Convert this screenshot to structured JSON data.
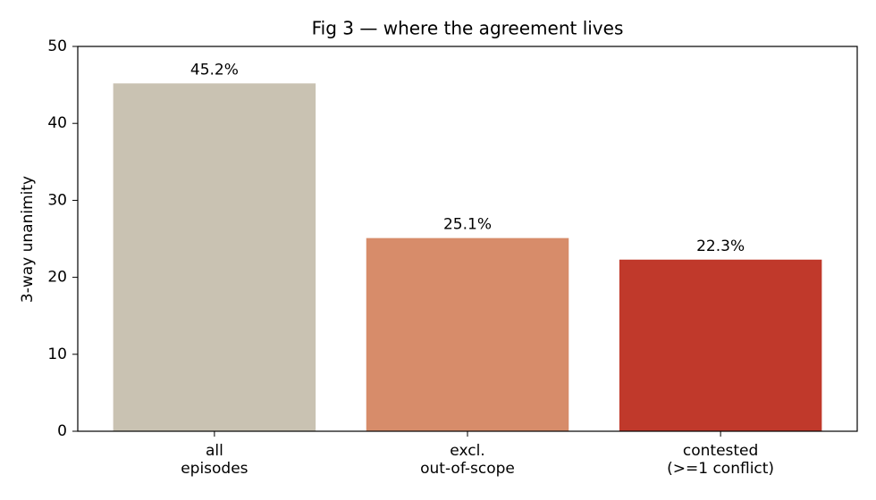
{
  "chart_data": {
    "type": "bar",
    "title": "Fig 3 — where the agreement lives",
    "y_label": "3-way unanimity",
    "categories": [
      "all\nepisodes",
      "excl.\nout-of-scope",
      "contested\n(>=1 conflict)"
    ],
    "values": [
      45.2,
      25.1,
      22.3
    ],
    "value_labels": [
      "45.2%",
      "25.1%",
      "22.3%"
    ],
    "colors": [
      "#c9c2b2",
      "#d78c6a",
      "#c0392b"
    ],
    "ylim": [
      0,
      50
    ],
    "yticks": [
      0,
      10,
      20,
      30,
      40,
      50
    ],
    "grid": false
  }
}
